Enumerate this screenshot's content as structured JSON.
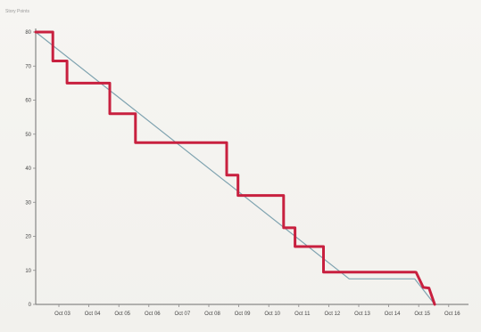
{
  "chart_data": {
    "type": "line",
    "title": "",
    "ylabel": "Story Points",
    "xlabel": "",
    "ylim": [
      0,
      80
    ],
    "xlim": [
      0,
      15
    ],
    "yticks": [
      0,
      10,
      20,
      30,
      40,
      50,
      60,
      70,
      80
    ],
    "xticks": [
      "Oct 03",
      "Oct 04",
      "Oct 05",
      "Oct 06",
      "Oct 07",
      "Oct 08",
      "Oct 09",
      "Oct 10",
      "Oct 11",
      "Oct 12",
      "Oct 13",
      "Oct 14",
      "Oct 15",
      "Oct 16"
    ],
    "grid": false,
    "legend": "none",
    "series": [
      {
        "role": "ideal",
        "color": "#7fa3b0",
        "points": [
          [
            0,
            80
          ],
          [
            11,
            7.5
          ],
          [
            13.3,
            7.5
          ],
          [
            14,
            0
          ]
        ]
      },
      {
        "role": "actual",
        "color": "#c8203f",
        "points": [
          [
            0,
            80
          ],
          [
            0.6,
            80
          ],
          [
            0.6,
            71.5
          ],
          [
            1.1,
            71.5
          ],
          [
            1.1,
            65
          ],
          [
            2.6,
            65
          ],
          [
            2.6,
            56
          ],
          [
            3.5,
            56
          ],
          [
            3.5,
            47.5
          ],
          [
            6.7,
            47.5
          ],
          [
            6.7,
            38
          ],
          [
            7.1,
            38
          ],
          [
            7.1,
            32
          ],
          [
            8.7,
            32
          ],
          [
            8.7,
            22.5
          ],
          [
            9.1,
            22.5
          ],
          [
            9.1,
            17
          ],
          [
            10.1,
            17
          ],
          [
            10.1,
            9.5
          ],
          [
            13.3,
            9.5
          ],
          [
            13.35,
            9.4
          ],
          [
            13.6,
            5
          ],
          [
            13.8,
            4.8
          ],
          [
            14,
            0
          ]
        ]
      }
    ]
  }
}
